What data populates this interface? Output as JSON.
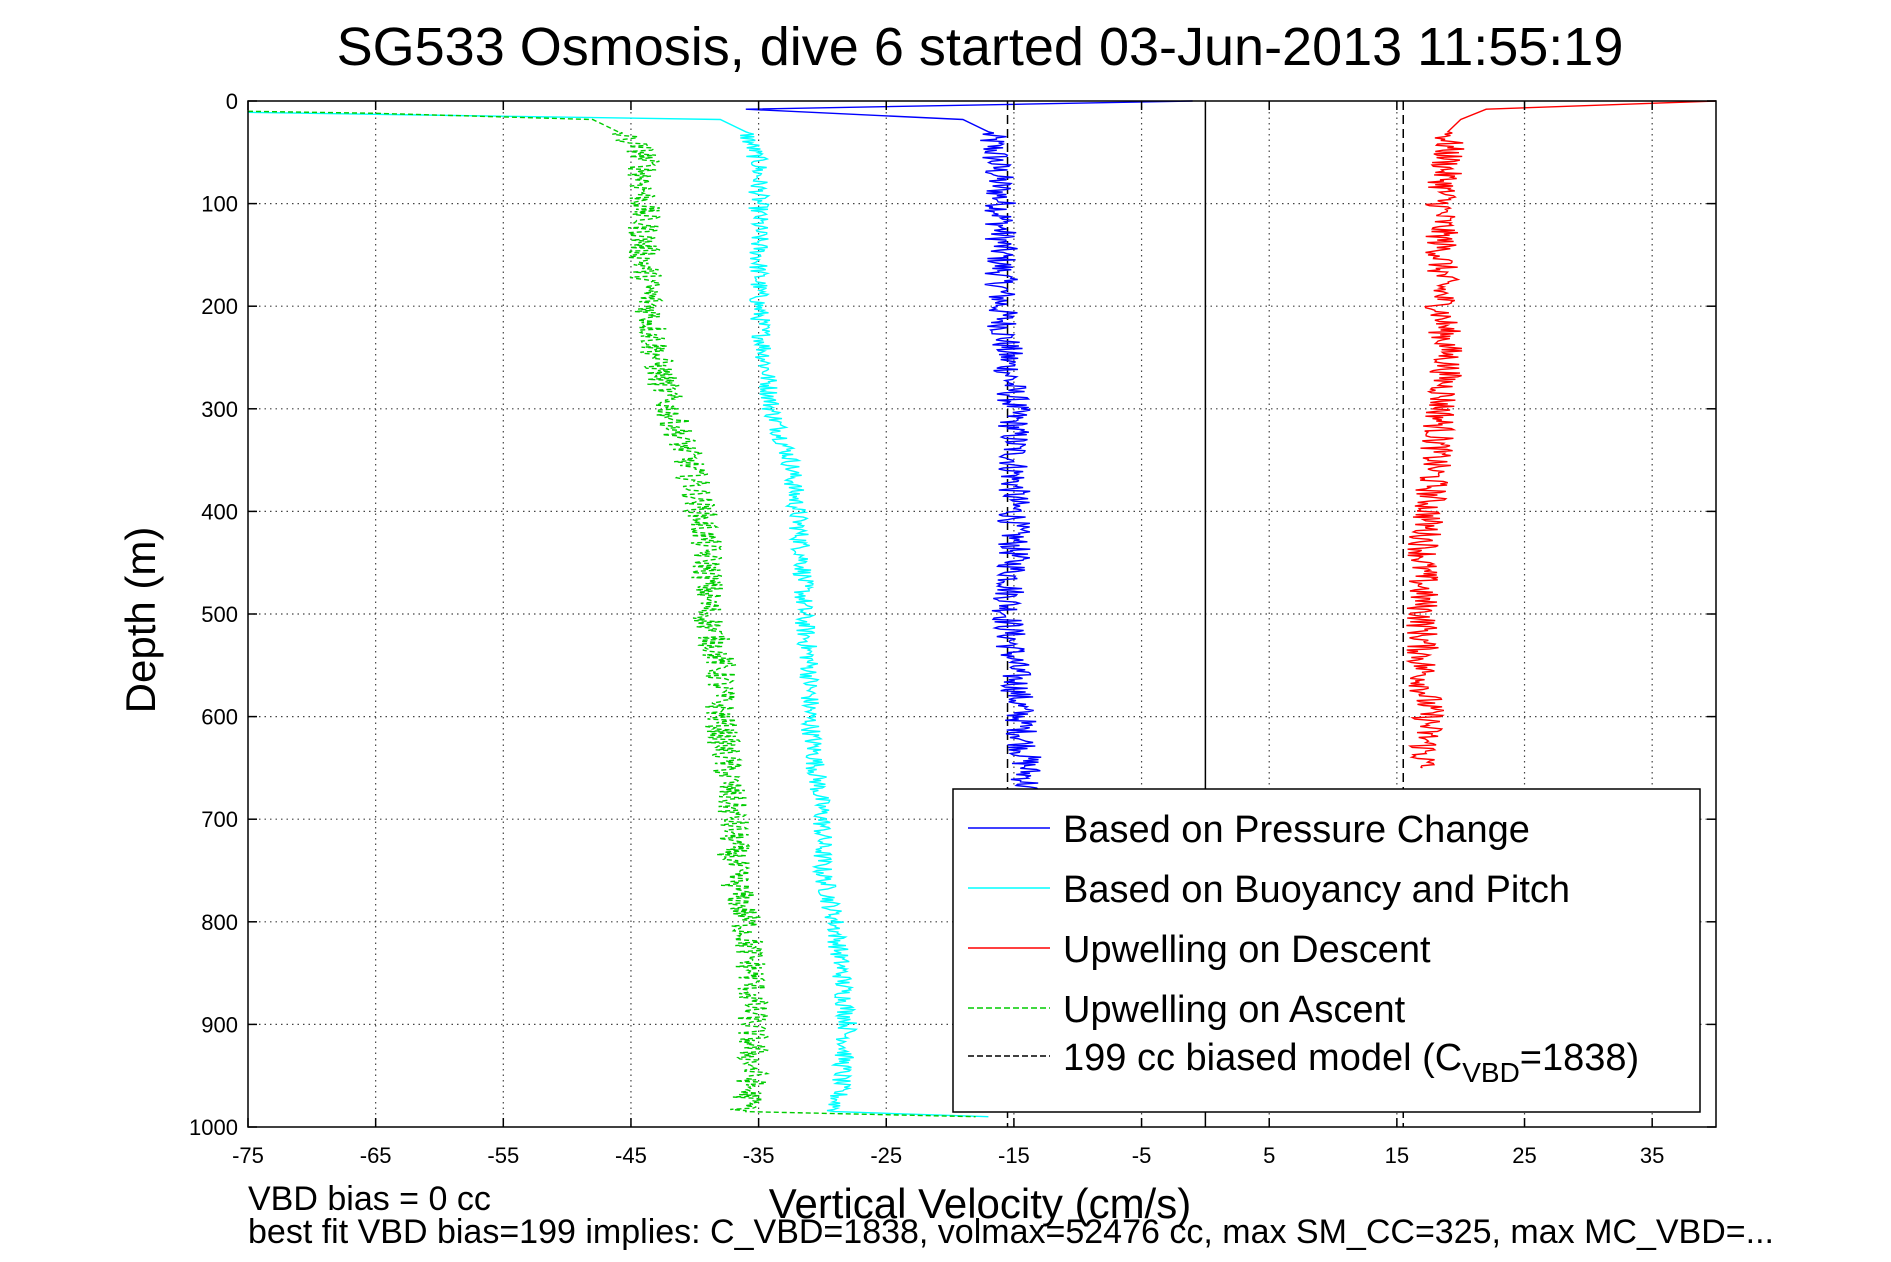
{
  "chart_data": {
    "type": "line",
    "title": "SG533 Osmosis, dive 6 started 03-Jun-2013 11:55:19",
    "xlabel": "Vertical Velocity (cm/s)",
    "ylabel": "Depth (m)",
    "xlim": [
      -75,
      40
    ],
    "ylim": [
      0,
      1000
    ],
    "y_reversed": true,
    "grid": true,
    "x_ticks": [
      -75,
      -65,
      -55,
      -45,
      -35,
      -25,
      -15,
      -5,
      5,
      15,
      25,
      35
    ],
    "y_ticks": [
      0,
      100,
      200,
      300,
      400,
      500,
      600,
      700,
      800,
      900,
      1000
    ],
    "legend_position": "bottom-right",
    "series": [
      {
        "name": "Based on Pressure Change",
        "color": "#0000ff",
        "style": "solid",
        "points": [
          [
            -1,
            0
          ],
          [
            -14,
            3
          ],
          [
            -36,
            8
          ],
          [
            -19,
            18
          ],
          [
            -17,
            30
          ],
          [
            -16.5,
            50
          ],
          [
            -16,
            100
          ],
          [
            -16,
            150
          ],
          [
            -16,
            200
          ],
          [
            -15.5,
            250
          ],
          [
            -15,
            300
          ],
          [
            -15,
            350
          ],
          [
            -15,
            400
          ],
          [
            -15,
            450
          ],
          [
            -15.5,
            500
          ],
          [
            -15,
            550
          ],
          [
            -14.5,
            600
          ],
          [
            -14,
            650
          ],
          [
            -14,
            672
          ]
        ]
      },
      {
        "name": "Based on Buoyancy and Pitch",
        "color": "#00ffff",
        "style": "solid",
        "points": [
          [
            -75,
            11
          ],
          [
            -65,
            13
          ],
          [
            -38,
            18
          ],
          [
            -36,
            30
          ],
          [
            -35,
            60
          ],
          [
            -35,
            100
          ],
          [
            -35,
            150
          ],
          [
            -35,
            200
          ],
          [
            -34.5,
            250
          ],
          [
            -34,
            300
          ],
          [
            -32.5,
            350
          ],
          [
            -32,
            400
          ],
          [
            -31.5,
            450
          ],
          [
            -31.5,
            500
          ],
          [
            -31,
            550
          ],
          [
            -31,
            600
          ],
          [
            -30.5,
            650
          ],
          [
            -30,
            700
          ],
          [
            -30,
            750
          ],
          [
            -29,
            800
          ],
          [
            -28.5,
            850
          ],
          [
            -28,
            900
          ],
          [
            -28.5,
            950
          ],
          [
            -29,
            985
          ],
          [
            -17,
            990
          ]
        ]
      },
      {
        "name": "Upwelling on Descent",
        "color": "#ff0000",
        "style": "solid",
        "points": [
          [
            40,
            0
          ],
          [
            22,
            8
          ],
          [
            20,
            18
          ],
          [
            19,
            30
          ],
          [
            19,
            50
          ],
          [
            18.5,
            100
          ],
          [
            18.5,
            150
          ],
          [
            18.5,
            200
          ],
          [
            19,
            250
          ],
          [
            18.5,
            300
          ],
          [
            18,
            350
          ],
          [
            17.5,
            400
          ],
          [
            17,
            450
          ],
          [
            17,
            500
          ],
          [
            17,
            550
          ],
          [
            17.5,
            600
          ],
          [
            17,
            650
          ]
        ]
      },
      {
        "name": "Upwelling on Ascent",
        "color": "#00cc00",
        "style": "dashed",
        "points": [
          [
            -75,
            10
          ],
          [
            -65,
            12
          ],
          [
            -48,
            18
          ],
          [
            -46,
            30
          ],
          [
            -44,
            50
          ],
          [
            -44,
            100
          ],
          [
            -44,
            150
          ],
          [
            -43.5,
            200
          ],
          [
            -43,
            250
          ],
          [
            -42,
            300
          ],
          [
            -40.5,
            350
          ],
          [
            -39.5,
            400
          ],
          [
            -39,
            450
          ],
          [
            -39,
            500
          ],
          [
            -38,
            550
          ],
          [
            -38,
            600
          ],
          [
            -37.5,
            650
          ],
          [
            -37,
            700
          ],
          [
            -37,
            750
          ],
          [
            -36,
            800
          ],
          [
            -35.5,
            850
          ],
          [
            -35.5,
            900
          ],
          [
            -35.5,
            950
          ],
          [
            -36,
            985
          ],
          [
            -18,
            990
          ]
        ]
      },
      {
        "name": "199 cc biased model (C_VBD=1838)",
        "color": "#000000",
        "style": "dashed",
        "points": []
      }
    ],
    "model_line_x": [
      -15.5,
      15.5
    ],
    "zero_line_x": 0,
    "legend": {
      "items": [
        {
          "label": "Based on Pressure Change",
          "color": "#0000ff",
          "style": "solid"
        },
        {
          "label": "Based on Buoyancy and Pitch",
          "color": "#00ffff",
          "style": "solid"
        },
        {
          "label": "Upwelling on Descent",
          "color": "#ff0000",
          "style": "solid"
        },
        {
          "label": "Upwelling on Ascent",
          "color": "#00cc00",
          "style": "dashed"
        },
        {
          "label_prefix": "199 cc biased model (C",
          "label_sub": "VBD",
          "label_suffix": "=1838)",
          "color": "#000000",
          "style": "dashed"
        }
      ]
    }
  },
  "footer": {
    "line1": "VBD bias = 0 cc",
    "line2": "best fit VBD bias=199 implies: C_VBD=1838, volmax=52476 cc, max SM_CC=325, max MC_VBD=..."
  }
}
